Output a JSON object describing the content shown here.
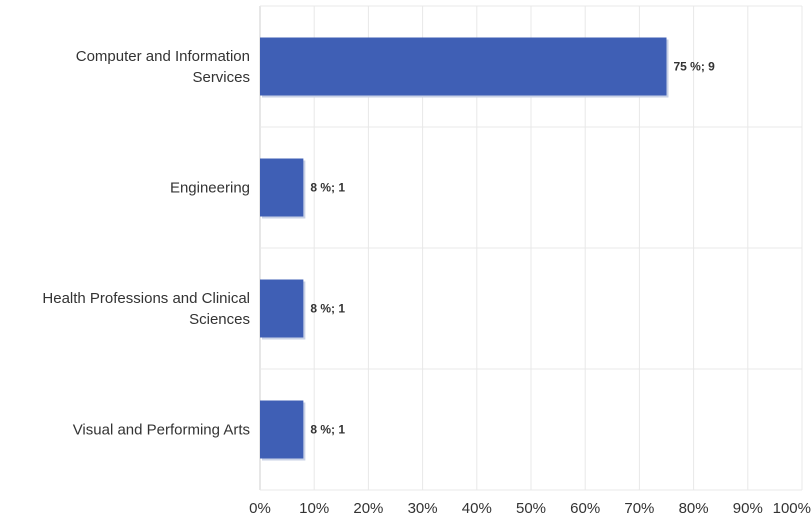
{
  "chart_data": {
    "type": "bar",
    "orientation": "horizontal",
    "categories": [
      [
        "Computer and Information",
        "Services"
      ],
      [
        "Engineering"
      ],
      [
        "Health Professions and Clinical",
        "Sciences"
      ],
      [
        "Visual and Performing Arts"
      ]
    ],
    "values": [
      75,
      8,
      8,
      8
    ],
    "counts": [
      9,
      1,
      1,
      1
    ],
    "data_labels": [
      "75 %; 9",
      "8 %; 1",
      "8 %; 1",
      "8 %; 1"
    ],
    "xlim": [
      0,
      100
    ],
    "x_ticks": [
      "0%",
      "10%",
      "20%",
      "30%",
      "40%",
      "50%",
      "60%",
      "70%",
      "80%",
      "90%",
      "100%"
    ],
    "title": "",
    "xlabel": "",
    "ylabel": "",
    "grid": true,
    "legend": "none",
    "bar_color": "#3f5fb5"
  }
}
